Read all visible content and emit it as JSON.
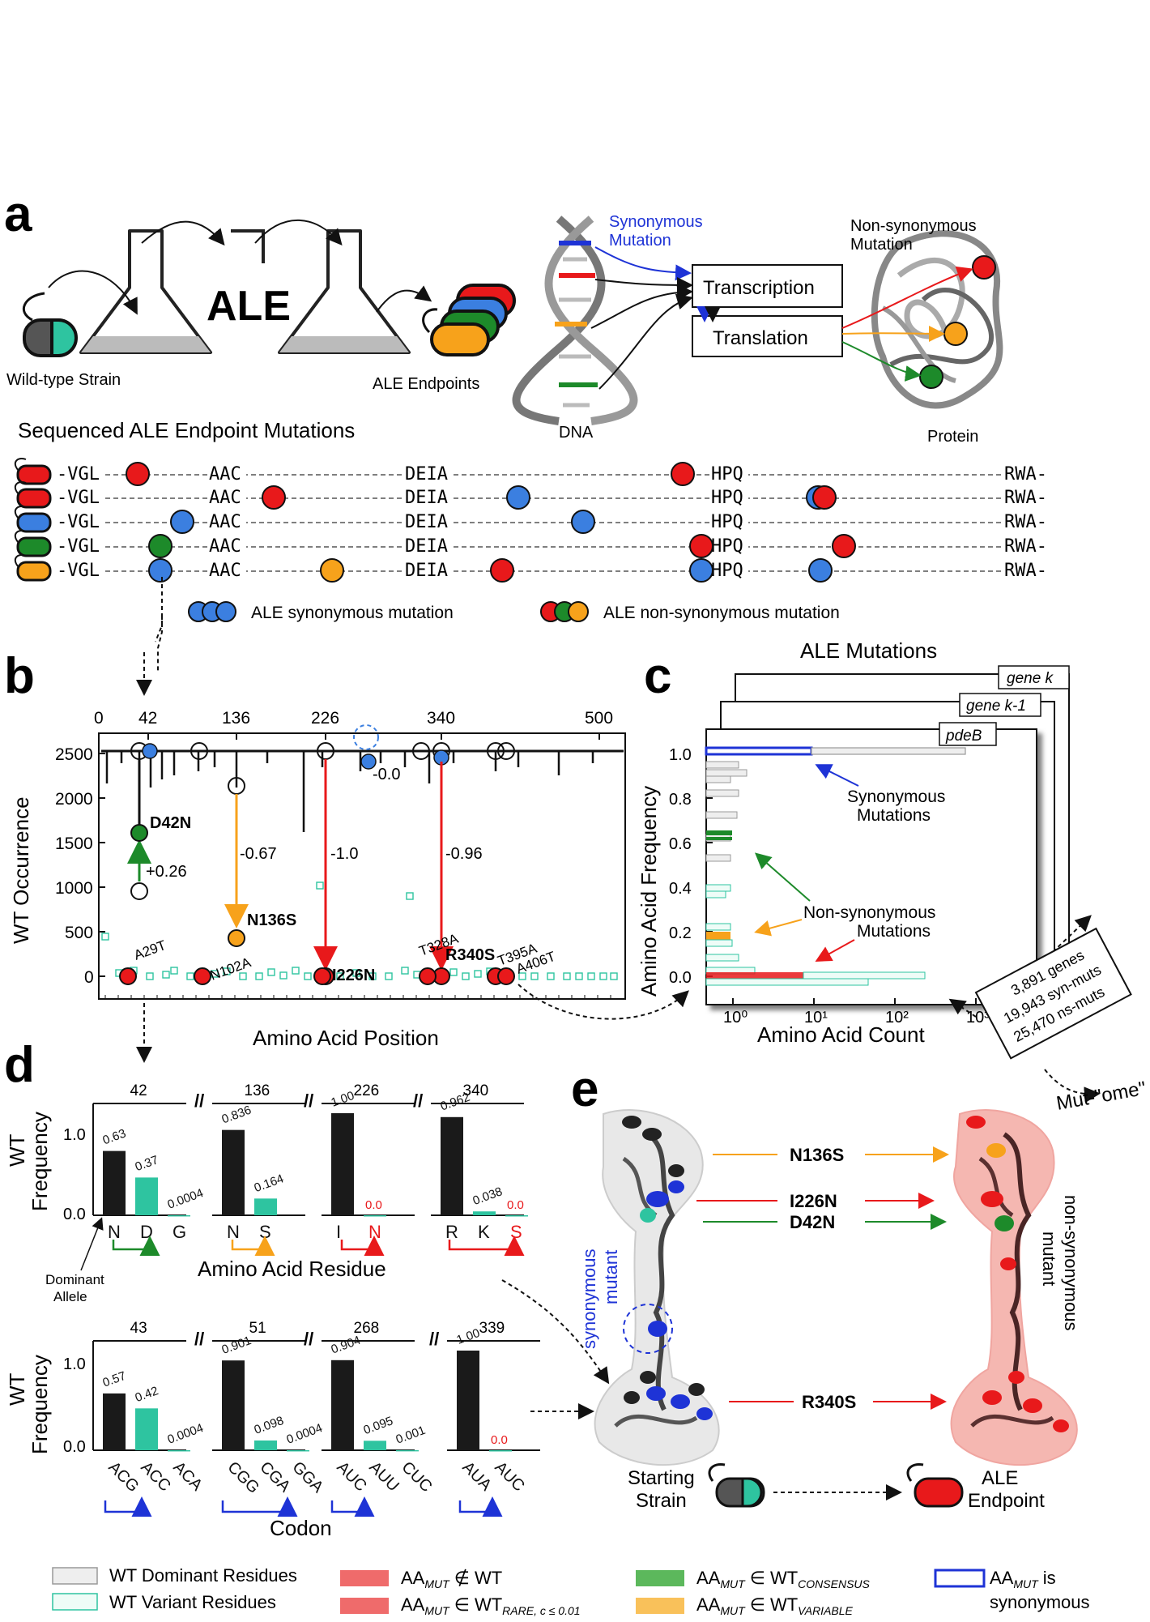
{
  "panel_labels": {
    "a": "a",
    "b": "b",
    "c": "c",
    "d": "d",
    "e": "e"
  },
  "panel_a": {
    "wild_type_label": "Wild-type Strain",
    "ale_label": "ALE",
    "endpoints_label": "ALE Endpoints",
    "synonymous_mutation_label": [
      "Synonymous",
      "Mutation"
    ],
    "transcription_label": "Transcription",
    "translation_label": "Translation",
    "dna_label": "DNA",
    "nonsyn_mutation_label": [
      "Non-synonymous",
      "Mutation"
    ],
    "protein_label": "Protein",
    "sequenced_title": "Sequenced ALE Endpoint Mutations",
    "motifs": [
      "-VGL",
      "AAC",
      "DEIA",
      "HPQ",
      "RWA-"
    ],
    "legend_syn": "ALE synonymous mutation",
    "legend_nonsyn": "ALE non-synonymous mutation",
    "colors": {
      "red": "#e8191b",
      "blue": "#3b7fe0",
      "green": "#1d8a2a",
      "orange": "#f7a21b",
      "teal": "#2ec4a0"
    }
  },
  "panel_b": {
    "x_ticks_top": [
      "0",
      "42",
      "136",
      "226",
      "340",
      "500"
    ],
    "y_ticks": [
      "0",
      "500",
      "1000",
      "1500",
      "2000",
      "2500"
    ],
    "ylabel": "WT Occurrence",
    "xlabel": "Amino Acid Position",
    "mutations": [
      {
        "label": "D42N",
        "delta": "+0.26"
      },
      {
        "label": "N136S",
        "delta": "-0.67"
      },
      {
        "label": "I226N",
        "delta": "-1.0"
      },
      {
        "label": "R340S",
        "delta": "-0.96"
      },
      {
        "label": "",
        "delta": "-0.0"
      }
    ],
    "minor_labels": [
      "A29T",
      "N102A",
      "T328A",
      "T395A",
      "A406T"
    ]
  },
  "panel_c": {
    "title": "ALE Mutations",
    "genes": [
      "gene k",
      "gene k-1",
      "pdeB"
    ],
    "ylabel": "Amino Acid Frequency",
    "xlabel": "Amino Acid Count",
    "y_ticks": [
      "0.0",
      "0.2",
      "0.4",
      "0.6",
      "0.8",
      "1.0"
    ],
    "x_ticks": [
      "10⁰",
      "10¹",
      "10²",
      "10³"
    ],
    "syn_label": [
      "Synonymous",
      "Mutations"
    ],
    "nonsyn_label": [
      "Non-synonymous",
      "Mutations"
    ],
    "summary": [
      "3,891 genes",
      "19,943 syn-muts",
      "25,470 ns-muts"
    ],
    "mutome": "Mut-\"ome\""
  },
  "panel_d": {
    "ylabel": [
      "WT",
      "Frequency"
    ],
    "y_ticks": [
      "0.0",
      "1.0"
    ],
    "aa_xlabel": "Amino Acid Residue",
    "codon_xlabel": "Codon",
    "dominant_allele": [
      "Dominant",
      "Allele"
    ],
    "aa_groups": [
      {
        "pos": "42",
        "bars": [
          {
            "label": "N",
            "value": 0.63,
            "text": "0.63"
          },
          {
            "label": "D",
            "value": 0.37,
            "text": "0.37"
          },
          {
            "label": "G",
            "value": 0.0004,
            "text": "0.0004"
          }
        ]
      },
      {
        "pos": "136",
        "bars": [
          {
            "label": "N",
            "value": 0.836,
            "text": "0.836"
          },
          {
            "label": "S",
            "value": 0.164,
            "text": "0.164"
          }
        ]
      },
      {
        "pos": "226",
        "bars": [
          {
            "label": "I",
            "value": 1.0,
            "text": "1.00"
          },
          {
            "label": "N",
            "value": 0.0,
            "text": "0.0"
          }
        ]
      },
      {
        "pos": "340",
        "bars": [
          {
            "label": "R",
            "value": 0.962,
            "text": "0.962"
          },
          {
            "label": "K",
            "value": 0.038,
            "text": "0.038"
          },
          {
            "label": "S",
            "value": 0.0,
            "text": "0.0"
          }
        ]
      }
    ],
    "codon_groups": [
      {
        "pos": "43",
        "bars": [
          {
            "label": "ACG",
            "value": 0.57,
            "text": "0.57"
          },
          {
            "label": "ACC",
            "value": 0.42,
            "text": "0.42"
          },
          {
            "label": "ACA",
            "value": 0.0004,
            "text": "0.0004"
          }
        ]
      },
      {
        "pos": "51",
        "bars": [
          {
            "label": "CGG",
            "value": 0.901,
            "text": "0.901"
          },
          {
            "label": "CGA",
            "value": 0.098,
            "text": "0.098"
          },
          {
            "label": "GGA",
            "value": 0.0004,
            "text": "0.0004"
          }
        ]
      },
      {
        "pos": "268",
        "bars": [
          {
            "label": "AUC",
            "value": 0.904,
            "text": "0.904"
          },
          {
            "label": "AUU",
            "value": 0.095,
            "text": "0.095"
          },
          {
            "label": "CUC",
            "value": 0.001,
            "text": "0.001"
          }
        ]
      },
      {
        "pos": "339",
        "bars": [
          {
            "label": "AUA",
            "value": 1.0,
            "text": "1.00"
          },
          {
            "label": "AUC",
            "value": 0.0,
            "text": "0.0"
          }
        ]
      }
    ]
  },
  "panel_e": {
    "mutations": [
      "N136S",
      "I226N",
      "D42N",
      "R340S"
    ],
    "syn_mutant": [
      "synonymous",
      "mutant"
    ],
    "nonsyn_mutant": [
      "non-synonymous",
      "mutant"
    ],
    "starting_strain": [
      "Starting",
      "Strain"
    ],
    "ale_endpoint": [
      "ALE",
      "Endpoint"
    ]
  },
  "legend": {
    "wt_dominant": "WT Dominant Residues",
    "wt_variant": "WT Variant Residues",
    "aa_mut_notin": "AA",
    "mut_sub": "MUT",
    "notin_wt": "∉ WT",
    "in_wt": "∈ WT",
    "rare_sub": "RARE, c ≤ 0.01",
    "consensus_sub": "CONSENSUS",
    "variable_sub": "VARIABLE",
    "is_syn": [
      "is",
      "synonymous"
    ]
  }
}
